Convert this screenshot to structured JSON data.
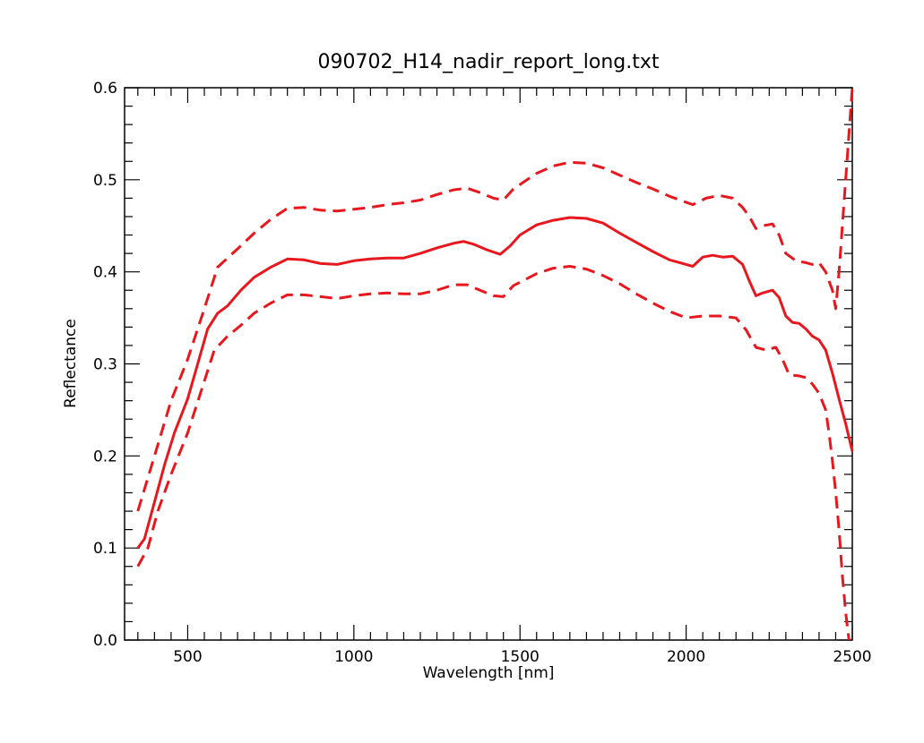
{
  "chart_data": {
    "type": "line",
    "title": "090702_H14_nadir_report_long.txt",
    "xlabel": "Wavelength [nm]",
    "ylabel": "Reflectance",
    "xlim": [
      310,
      2500
    ],
    "ylim": [
      0.0,
      0.6
    ],
    "x_ticks": [
      "500",
      "1000",
      "1500",
      "2000",
      "2500"
    ],
    "y_ticks": [
      "0.0",
      "0.1",
      "0.2",
      "0.3",
      "0.4",
      "0.5",
      "0.6"
    ],
    "grid": false,
    "legend": "none",
    "series": [
      {
        "style": "solid",
        "color": "#e8171d",
        "points": [
          [
            350,
            0.1
          ],
          [
            370,
            0.11
          ],
          [
            400,
            0.15
          ],
          [
            430,
            0.19
          ],
          [
            460,
            0.225
          ],
          [
            500,
            0.262
          ],
          [
            530,
            0.3
          ],
          [
            560,
            0.338
          ],
          [
            590,
            0.355
          ],
          [
            620,
            0.363
          ],
          [
            660,
            0.38
          ],
          [
            700,
            0.394
          ],
          [
            750,
            0.405
          ],
          [
            800,
            0.414
          ],
          [
            850,
            0.413
          ],
          [
            900,
            0.409
          ],
          [
            950,
            0.408
          ],
          [
            1000,
            0.412
          ],
          [
            1050,
            0.414
          ],
          [
            1100,
            0.415
          ],
          [
            1150,
            0.415
          ],
          [
            1200,
            0.42
          ],
          [
            1250,
            0.426
          ],
          [
            1300,
            0.431
          ],
          [
            1330,
            0.433
          ],
          [
            1360,
            0.43
          ],
          [
            1400,
            0.424
          ],
          [
            1440,
            0.419
          ],
          [
            1470,
            0.428
          ],
          [
            1500,
            0.44
          ],
          [
            1550,
            0.451
          ],
          [
            1600,
            0.456
          ],
          [
            1650,
            0.459
          ],
          [
            1700,
            0.458
          ],
          [
            1750,
            0.453
          ],
          [
            1800,
            0.442
          ],
          [
            1850,
            0.432
          ],
          [
            1900,
            0.422
          ],
          [
            1950,
            0.413
          ],
          [
            2020,
            0.406
          ],
          [
            2050,
            0.416
          ],
          [
            2080,
            0.418
          ],
          [
            2110,
            0.416
          ],
          [
            2140,
            0.417
          ],
          [
            2170,
            0.408
          ],
          [
            2190,
            0.39
          ],
          [
            2210,
            0.374
          ],
          [
            2230,
            0.377
          ],
          [
            2260,
            0.38
          ],
          [
            2280,
            0.372
          ],
          [
            2300,
            0.352
          ],
          [
            2320,
            0.345
          ],
          [
            2340,
            0.344
          ],
          [
            2360,
            0.338
          ],
          [
            2380,
            0.33
          ],
          [
            2400,
            0.326
          ],
          [
            2420,
            0.315
          ],
          [
            2440,
            0.29
          ],
          [
            2460,
            0.262
          ],
          [
            2480,
            0.235
          ],
          [
            2500,
            0.205
          ]
        ]
      },
      {
        "style": "dashed",
        "color": "#e8171d",
        "points": [
          [
            350,
            0.14
          ],
          [
            400,
            0.2
          ],
          [
            450,
            0.26
          ],
          [
            500,
            0.305
          ],
          [
            550,
            0.36
          ],
          [
            590,
            0.405
          ],
          [
            650,
            0.425
          ],
          [
            700,
            0.442
          ],
          [
            750,
            0.457
          ],
          [
            800,
            0.469
          ],
          [
            850,
            0.47
          ],
          [
            900,
            0.467
          ],
          [
            950,
            0.466
          ],
          [
            1000,
            0.468
          ],
          [
            1050,
            0.47
          ],
          [
            1100,
            0.473
          ],
          [
            1150,
            0.475
          ],
          [
            1200,
            0.478
          ],
          [
            1250,
            0.484
          ],
          [
            1300,
            0.489
          ],
          [
            1340,
            0.491
          ],
          [
            1380,
            0.486
          ],
          [
            1420,
            0.48
          ],
          [
            1450,
            0.478
          ],
          [
            1480,
            0.49
          ],
          [
            1550,
            0.507
          ],
          [
            1600,
            0.515
          ],
          [
            1650,
            0.519
          ],
          [
            1700,
            0.518
          ],
          [
            1750,
            0.513
          ],
          [
            1800,
            0.505
          ],
          [
            1850,
            0.497
          ],
          [
            1900,
            0.49
          ],
          [
            1950,
            0.482
          ],
          [
            2020,
            0.473
          ],
          [
            2060,
            0.48
          ],
          [
            2100,
            0.483
          ],
          [
            2140,
            0.48
          ],
          [
            2170,
            0.47
          ],
          [
            2190,
            0.46
          ],
          [
            2210,
            0.447
          ],
          [
            2230,
            0.45
          ],
          [
            2260,
            0.452
          ],
          [
            2280,
            0.44
          ],
          [
            2300,
            0.42
          ],
          [
            2330,
            0.412
          ],
          [
            2360,
            0.41
          ],
          [
            2380,
            0.408
          ],
          [
            2400,
            0.41
          ],
          [
            2420,
            0.4
          ],
          [
            2440,
            0.38
          ],
          [
            2450,
            0.36
          ],
          [
            2460,
            0.4
          ],
          [
            2470,
            0.45
          ],
          [
            2480,
            0.5
          ],
          [
            2490,
            0.55
          ],
          [
            2500,
            0.6
          ]
        ]
      },
      {
        "style": "dashed",
        "color": "#e8171d",
        "points": [
          [
            350,
            0.08
          ],
          [
            380,
            0.1
          ],
          [
            410,
            0.14
          ],
          [
            450,
            0.18
          ],
          [
            500,
            0.225
          ],
          [
            540,
            0.27
          ],
          [
            580,
            0.315
          ],
          [
            620,
            0.33
          ],
          [
            660,
            0.342
          ],
          [
            700,
            0.355
          ],
          [
            750,
            0.366
          ],
          [
            800,
            0.375
          ],
          [
            850,
            0.375
          ],
          [
            900,
            0.373
          ],
          [
            950,
            0.371
          ],
          [
            1000,
            0.374
          ],
          [
            1050,
            0.376
          ],
          [
            1100,
            0.377
          ],
          [
            1150,
            0.376
          ],
          [
            1200,
            0.376
          ],
          [
            1250,
            0.38
          ],
          [
            1300,
            0.386
          ],
          [
            1340,
            0.386
          ],
          [
            1380,
            0.38
          ],
          [
            1420,
            0.374
          ],
          [
            1450,
            0.373
          ],
          [
            1480,
            0.385
          ],
          [
            1550,
            0.398
          ],
          [
            1600,
            0.404
          ],
          [
            1650,
            0.406
          ],
          [
            1700,
            0.403
          ],
          [
            1750,
            0.396
          ],
          [
            1800,
            0.387
          ],
          [
            1850,
            0.376
          ],
          [
            1900,
            0.366
          ],
          [
            1950,
            0.357
          ],
          [
            2000,
            0.35
          ],
          [
            2050,
            0.352
          ],
          [
            2100,
            0.352
          ],
          [
            2150,
            0.35
          ],
          [
            2180,
            0.337
          ],
          [
            2210,
            0.318
          ],
          [
            2240,
            0.315
          ],
          [
            2270,
            0.318
          ],
          [
            2290,
            0.305
          ],
          [
            2310,
            0.288
          ],
          [
            2340,
            0.287
          ],
          [
            2360,
            0.285
          ],
          [
            2380,
            0.278
          ],
          [
            2400,
            0.268
          ],
          [
            2420,
            0.25
          ],
          [
            2430,
            0.225
          ],
          [
            2440,
            0.195
          ],
          [
            2450,
            0.16
          ],
          [
            2460,
            0.12
          ],
          [
            2470,
            0.07
          ],
          [
            2480,
            0.03
          ],
          [
            2490,
            0.0
          ]
        ]
      }
    ]
  }
}
